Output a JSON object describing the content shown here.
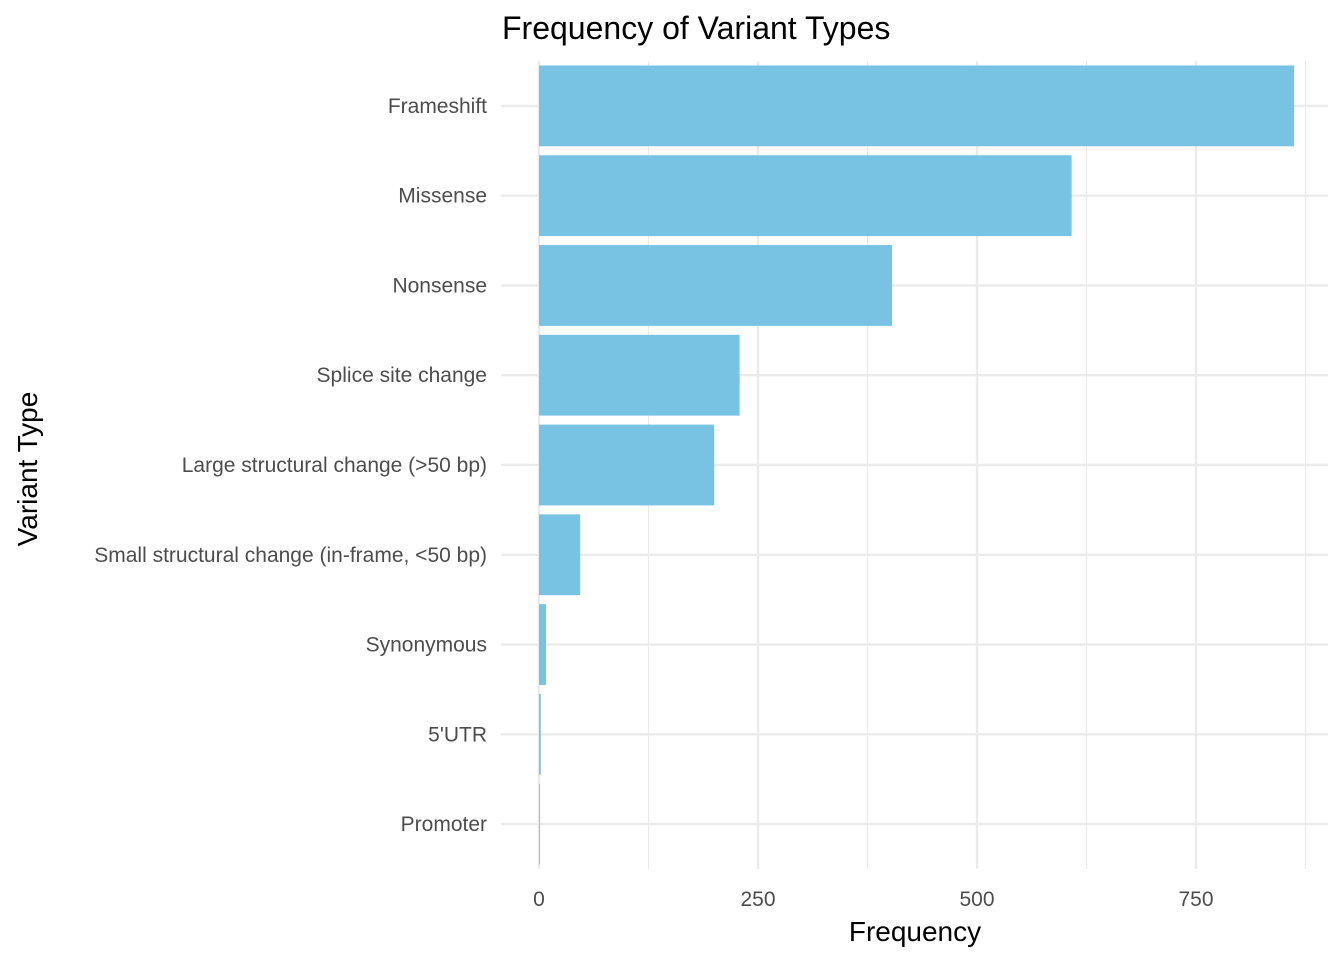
{
  "chart_data": {
    "type": "bar",
    "orientation": "horizontal",
    "title": "Frequency of Variant Types",
    "xlabel": "Frequency",
    "ylabel": "Variant Type",
    "categories": [
      "Frameshift",
      "Missense",
      "Nonsense",
      "Splice site change",
      "Large structural change (>50 bp)",
      "Small structural change (in-frame, <50 bp)",
      "Synonymous",
      "5'UTR",
      "Promoter"
    ],
    "values": [
      862,
      608,
      403,
      229,
      200,
      47,
      8,
      2,
      1
    ],
    "xlim": [
      0,
      900
    ],
    "xticks": [
      0,
      250,
      500,
      750
    ],
    "xtick_labels": [
      "0",
      "250",
      "500",
      "750"
    ],
    "grid": true,
    "legend": "none",
    "bar_color": "#78c2e4",
    "grid_color": "#ebebeb"
  }
}
